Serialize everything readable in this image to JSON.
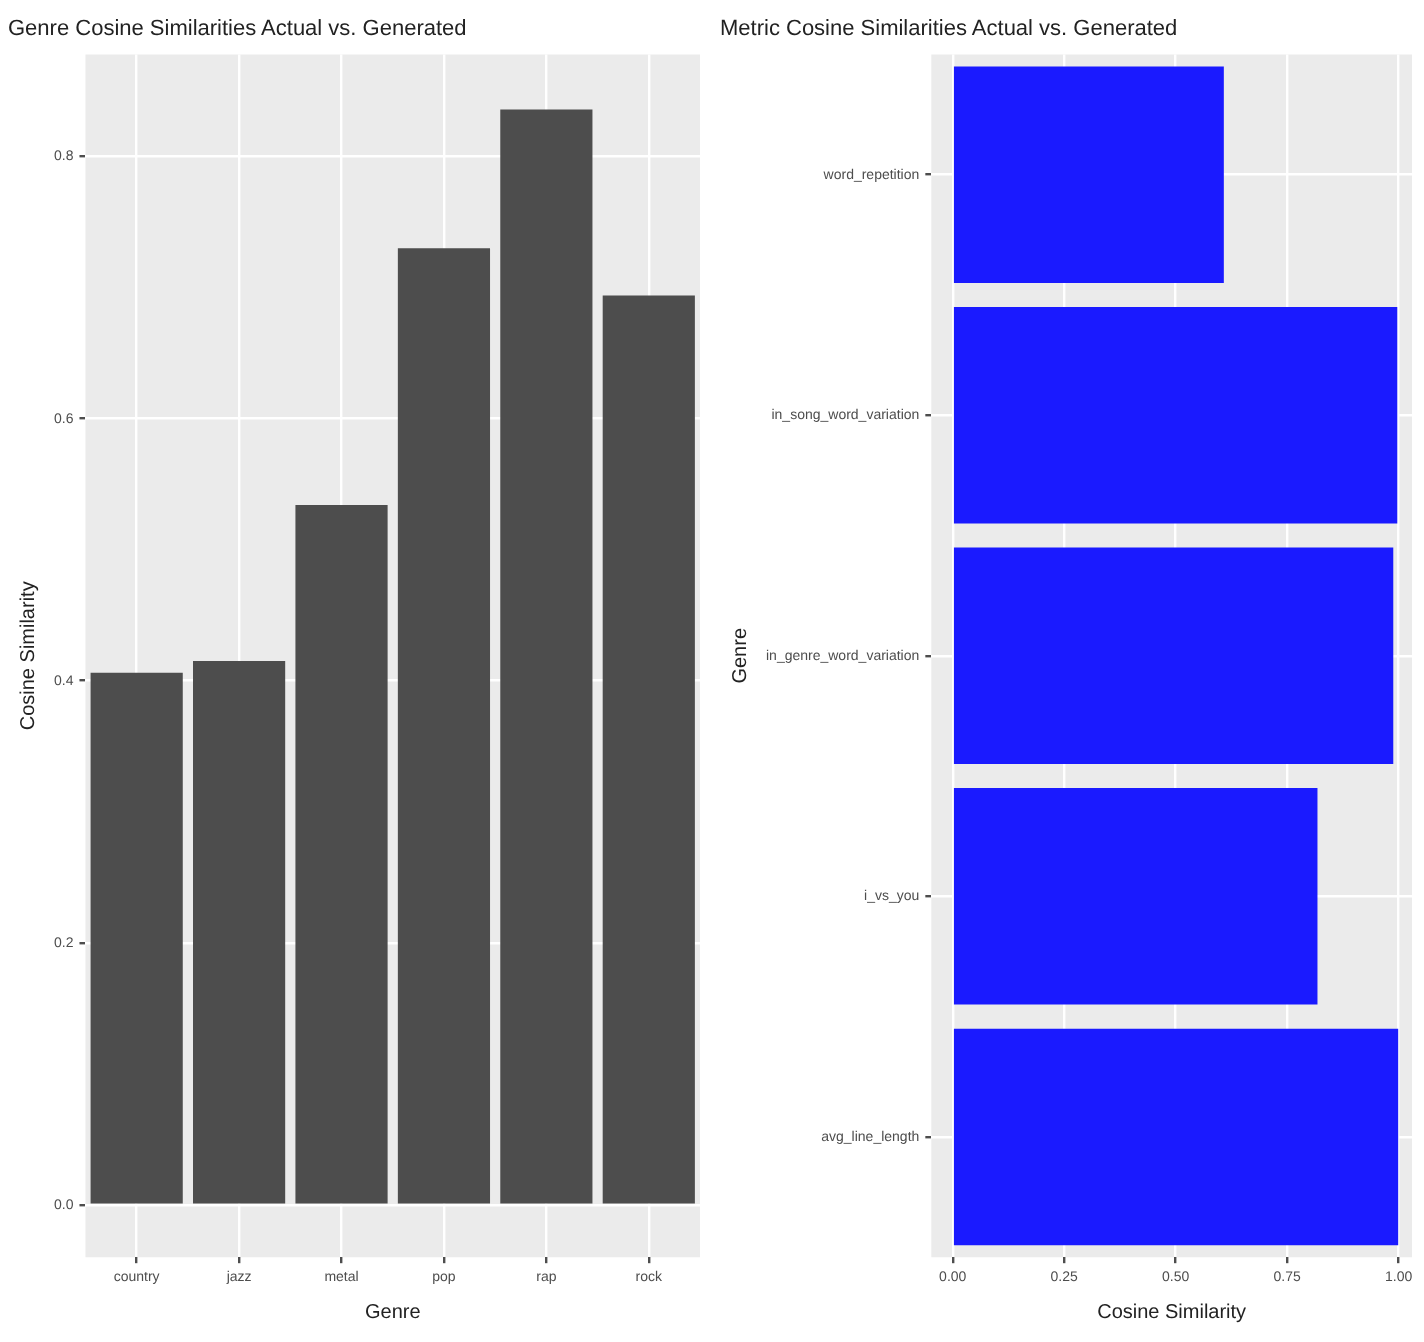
{
  "chart_data": [
    {
      "type": "bar",
      "title": "Genre Cosine Similarities Actual vs. Generated",
      "xlabel": "Genre",
      "ylabel": "Cosine Similarity",
      "categories": [
        "country",
        "jazz",
        "metal",
        "pop",
        "rap",
        "rock"
      ],
      "values": [
        0.406,
        0.415,
        0.534,
        0.73,
        0.836,
        0.694
      ],
      "color": "#4d4d4d",
      "ylim": [
        -0.04,
        0.878
      ],
      "yticks": [
        {
          "value": 0,
          "label": "0.0"
        },
        0.2,
        0.4,
        0.6,
        0.8
      ],
      "grid": true,
      "legend": false
    },
    {
      "type": "bar",
      "orientation": "horizontal",
      "title": "Metric Cosine Similarities Actual vs. Generated",
      "xlabel": "Cosine Similarity",
      "ylabel": "Genre",
      "categories": [
        "word_repetition",
        "in_song_word_variation",
        "in_genre_word_variation",
        "i_vs_you",
        "avg_line_length"
      ],
      "values": [
        0.608,
        0.997,
        0.988,
        0.818,
        0.999
      ],
      "color": "#1a1aff",
      "xlim": [
        -0.048,
        1.03
      ],
      "xticks": [
        {
          "value": 0,
          "label": "0.00"
        },
        0.25,
        {
          "value": 0.5,
          "label": "0.50"
        },
        0.75,
        {
          "value": 1,
          "label": "1.00"
        }
      ],
      "grid": true,
      "legend": false
    }
  ]
}
